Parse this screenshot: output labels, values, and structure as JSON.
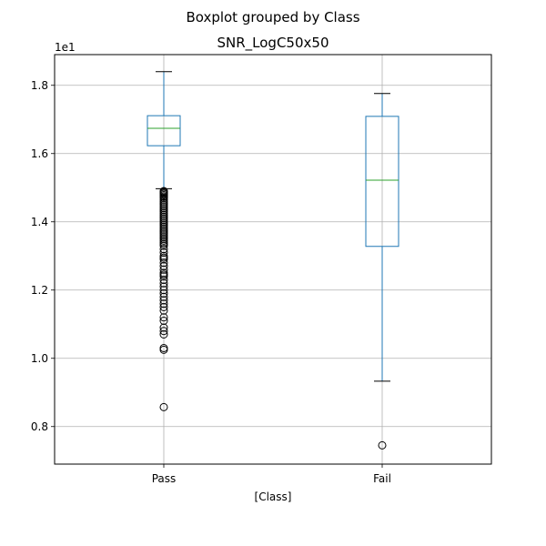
{
  "figure": {
    "suptitle": "Boxplot grouped by Class",
    "title": "SNR_LogC50x50",
    "xlabel": "[Class]",
    "offset_text": "1e1"
  },
  "chart_data": {
    "type": "boxplot",
    "title": "SNR_LogC50x50",
    "xlabel": "[Class]",
    "ylabel": "",
    "y_scale_multiplier": "1e1",
    "ylim": [
      0.69,
      1.89
    ],
    "yticks": [
      0.8,
      1.0,
      1.2,
      1.4,
      1.6,
      1.8
    ],
    "ytick_labels": [
      "0.8",
      "1.0",
      "1.2",
      "1.4",
      "1.6",
      "1.8"
    ],
    "categories": [
      "Pass",
      "Fail"
    ],
    "grid": true,
    "series": [
      {
        "category": "Pass",
        "whisker_low": 1.497,
        "q1": 1.623,
        "median": 1.674,
        "q3": 1.711,
        "whisker_high": 1.84,
        "outliers": [
          1.49,
          1.488,
          1.485,
          1.482,
          1.478,
          1.474,
          1.47,
          1.465,
          1.46,
          1.455,
          1.45,
          1.445,
          1.44,
          1.435,
          1.43,
          1.425,
          1.42,
          1.415,
          1.41,
          1.405,
          1.4,
          1.395,
          1.39,
          1.385,
          1.38,
          1.375,
          1.37,
          1.365,
          1.36,
          1.355,
          1.35,
          1.345,
          1.34,
          1.335,
          1.33,
          1.32,
          1.31,
          1.3,
          1.295,
          1.29,
          1.28,
          1.27,
          1.26,
          1.25,
          1.245,
          1.24,
          1.23,
          1.22,
          1.21,
          1.2,
          1.19,
          1.18,
          1.17,
          1.16,
          1.15,
          1.14,
          1.12,
          1.11,
          1.09,
          1.08,
          1.07,
          1.03,
          1.025,
          0.857
        ]
      },
      {
        "category": "Fail",
        "whisker_low": 0.933,
        "q1": 1.328,
        "median": 1.522,
        "q3": 1.709,
        "whisker_high": 1.776,
        "outliers": [
          0.745
        ]
      }
    ],
    "colors": {
      "box": "#1f77b4",
      "median": "#2ca02c",
      "whisker_cap": "#000000",
      "outlier": "#000000",
      "grid": "#b0b0b0"
    }
  }
}
